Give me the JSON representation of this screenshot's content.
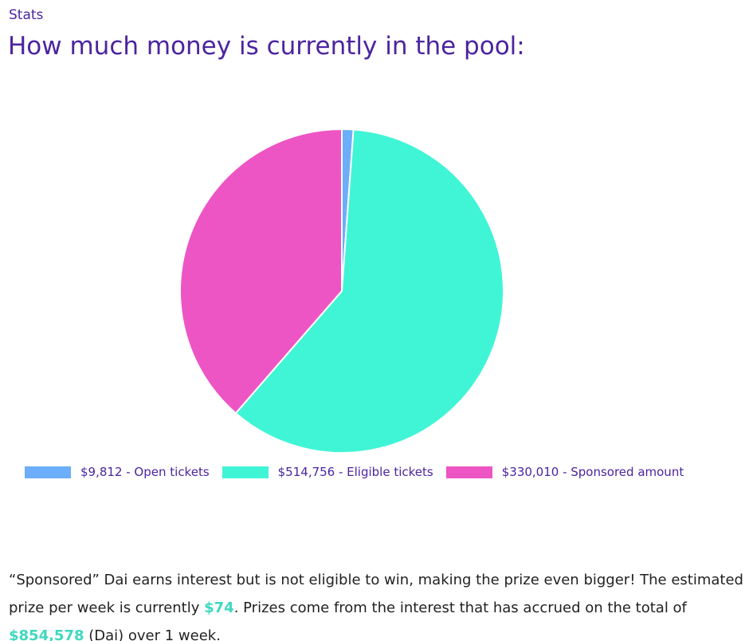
{
  "section": {
    "eyebrow": "Stats",
    "title": "How much money is currently in the pool:"
  },
  "chart_data": {
    "type": "pie",
    "slices": [
      {
        "label": "$9,812 - Open tickets",
        "value": 9812,
        "color": "#6caef9"
      },
      {
        "label": "$514,756 - Eligible tickets",
        "value": 514756,
        "color": "#40f5d5"
      },
      {
        "label": "$330,010 - Sponsored amount",
        "value": 330010,
        "color": "#ed55c4"
      }
    ],
    "legend_position": "bottom"
  },
  "description": {
    "part1": "“Sponsored” Dai earns interest but is not eligible to win, making the prize even bigger! The estimated prize per week is currently ",
    "prize": "$74",
    "part2": ". Prizes come from the interest that has accrued on the total of ",
    "total": "$854,578",
    "part3": " (Dai) over 1 week."
  }
}
